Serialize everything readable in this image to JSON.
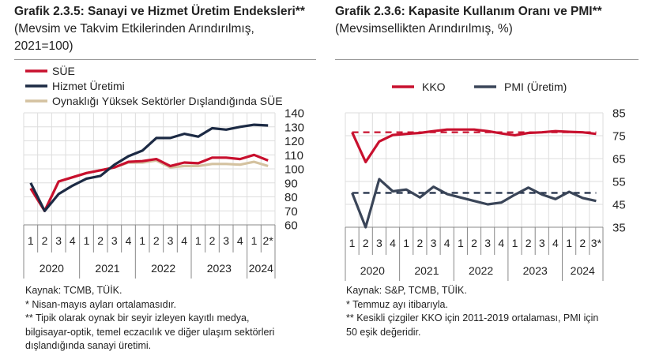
{
  "left": {
    "title_bold": "Grafik 2.3.5: Sanayi ve Hizmet Üretim Endeksleri**",
    "title_rest": " (Mevsim ve Takvim Etkilerinden Arındırılmış, 2021=100)",
    "notes": [
      "Kaynak: TCMB, TÜİK.",
      "* Nisan-mayıs ayları ortalamasıdır.",
      "** Tipik olarak oynak bir seyir izleyen kayıtlı medya,",
      "bilgisayar-optik, temel eczacılık ve diğer ulaşım sektörleri",
      "dışlandığında sanayi üretimi."
    ]
  },
  "right": {
    "title_bold": "Grafik 2.3.6: Kapasite Kullanım Oranı ve PMI**",
    "title_rest": " (Mevsimsellikten Arındırılmış, %)",
    "notes": [
      "Kaynak: S&P, TCMB, TÜİK.",
      "* Temmuz ayı itibarıyla.",
      "** Kesikli çizgiler KKO için 2011-2019 ortalaması, PMI için",
      "50 eşik değeridir."
    ]
  },
  "chart_data": [
    {
      "type": "line",
      "title": "Grafik 2.3.5: Sanayi ve Hizmet Üretim Endeksleri** (Mevsim ve Takvim Etkilerinden Arındırılmış, 2021=100)",
      "categories": [
        "1",
        "2",
        "3",
        "4",
        "1",
        "2",
        "3",
        "4",
        "1",
        "2",
        "3",
        "4",
        "1",
        "2",
        "3",
        "4",
        "1",
        "2*"
      ],
      "years": [
        "2020",
        "2021",
        "2022",
        "2023",
        "2024"
      ],
      "year_spans": [
        4,
        4,
        4,
        4,
        2
      ],
      "ylim": [
        60,
        140
      ],
      "yticks": [
        60,
        70,
        80,
        90,
        100,
        110,
        120,
        130,
        140
      ],
      "yaxis_side": "right",
      "grid": true,
      "legend": "top-left",
      "series": [
        {
          "name": "SÜE",
          "color": "#c8102e",
          "values": [
            86,
            70,
            91,
            94,
            97,
            99,
            101,
            105,
            105.5,
            107,
            102,
            104.5,
            104,
            108,
            108,
            107,
            110,
            106
          ]
        },
        {
          "name": "Hizmet Üretimi",
          "color": "#1c2a44",
          "values": [
            90,
            70,
            82,
            88,
            93,
            95,
            103,
            109,
            113,
            122,
            122,
            125,
            123,
            129,
            128,
            130,
            131.5,
            131
          ]
        },
        {
          "name": "Oynaklığı Yüksek Sektörler Dışlandığında SÜE",
          "color": "#d4c2a0",
          "values": [
            86,
            70,
            91,
            94,
            97,
            99,
            101,
            104.5,
            104.5,
            106,
            101,
            102,
            102,
            103.5,
            103.5,
            103,
            105,
            102
          ]
        }
      ]
    },
    {
      "type": "line",
      "title": "Grafik 2.3.6: Kapasite Kullanım Oranı ve PMI** (Mevsimsellikten Arındırılmış, %)",
      "categories": [
        "1",
        "2",
        "3",
        "4",
        "1",
        "2",
        "3",
        "4",
        "1",
        "2",
        "3",
        "4",
        "1",
        "2",
        "3",
        "4",
        "1",
        "2",
        "3*"
      ],
      "years": [
        "2020",
        "2021",
        "2022",
        "2023",
        "2024"
      ],
      "year_spans": [
        4,
        4,
        4,
        4,
        3
      ],
      "ylim": [
        35,
        85
      ],
      "yticks": [
        35,
        45,
        55,
        65,
        75,
        85
      ],
      "yaxis_side": "right",
      "grid": true,
      "legend": "top",
      "series": [
        {
          "name": "KKO",
          "color": "#c8102e",
          "values": [
            76.5,
            63.5,
            72.5,
            75.3,
            75.8,
            76.2,
            77,
            77.7,
            77.7,
            77.7,
            77,
            76,
            75.2,
            76.2,
            76.5,
            77,
            76.7,
            76.5,
            75.8
          ]
        },
        {
          "name": "PMI (Üretim)",
          "color": "#3a4558",
          "values": [
            50,
            35,
            56,
            50.7,
            51.5,
            48,
            52.7,
            49.5,
            48,
            46.5,
            45,
            45.8,
            49.2,
            52.3,
            49.3,
            47.3,
            50.5,
            47.8,
            46.5
          ]
        }
      ],
      "reference_lines": [
        {
          "value": 76.5,
          "color": "#c8102e",
          "style": "dashed"
        },
        {
          "value": 50,
          "color": "#1c2a44",
          "style": "dashed"
        }
      ]
    }
  ]
}
